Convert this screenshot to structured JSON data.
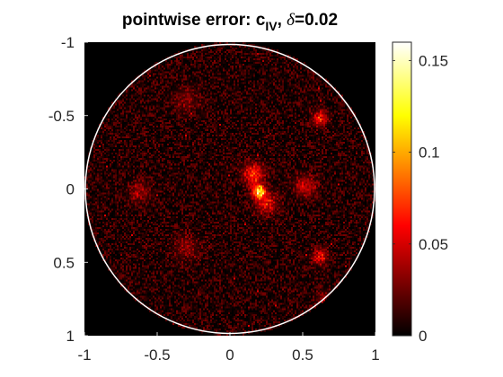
{
  "chart_data": {
    "type": "heatmap",
    "title": {
      "prefix": "pointwise error: c",
      "subscript": "IV",
      "suffix_sep": ", ",
      "delta_symbol": "δ",
      "suffix": "=0.02"
    },
    "xlabel": "",
    "ylabel": "",
    "xlim": [
      -1,
      1
    ],
    "ylim": [
      -1,
      1
    ],
    "y_direction": "reverse",
    "x_ticks": [
      {
        "value": -1,
        "label": "-1"
      },
      {
        "value": -0.5,
        "label": "-0.5"
      },
      {
        "value": 0,
        "label": "0"
      },
      {
        "value": 0.5,
        "label": "0.5"
      },
      {
        "value": 1,
        "label": "1"
      }
    ],
    "y_ticks": [
      {
        "value": -1,
        "label": "-1"
      },
      {
        "value": -0.5,
        "label": "-0.5"
      },
      {
        "value": 0,
        "label": "0"
      },
      {
        "value": 0.5,
        "label": "0.5"
      },
      {
        "value": 1,
        "label": "1"
      }
    ],
    "colormap": "hot",
    "color_limits": [
      0,
      0.16
    ],
    "colorbar_ticks": [
      {
        "value": 0,
        "label": "0"
      },
      {
        "value": 0.05,
        "label": "0.05"
      },
      {
        "value": 0.1,
        "label": "0.1"
      },
      {
        "value": 0.15,
        "label": "0.15"
      }
    ],
    "domain_boundary": {
      "shape": "circle",
      "center": [
        0,
        0
      ],
      "radius": 1,
      "color": "#ffffff"
    },
    "background_value": 0,
    "noise_level": 0.018,
    "hotspots": [
      {
        "x": 0.2,
        "y": 0.02,
        "peak": 0.155,
        "sigma": 0.03
      },
      {
        "x": 0.16,
        "y": -0.1,
        "peak": 0.08,
        "sigma": 0.05
      },
      {
        "x": 0.25,
        "y": 0.1,
        "peak": 0.06,
        "sigma": 0.05
      },
      {
        "x": 0.52,
        "y": -0.02,
        "peak": 0.05,
        "sigma": 0.05
      },
      {
        "x": 0.62,
        "y": -0.48,
        "peak": 0.07,
        "sigma": 0.035
      },
      {
        "x": 0.62,
        "y": 0.46,
        "peak": 0.065,
        "sigma": 0.035
      },
      {
        "x": -0.62,
        "y": 0.02,
        "peak": 0.035,
        "sigma": 0.05
      },
      {
        "x": -0.3,
        "y": 0.4,
        "peak": 0.03,
        "sigma": 0.06
      },
      {
        "x": 0.65,
        "y": 0.75,
        "peak": 0.03,
        "sigma": 0.04
      },
      {
        "x": -0.3,
        "y": -0.6,
        "peak": 0.025,
        "sigma": 0.06
      }
    ]
  }
}
